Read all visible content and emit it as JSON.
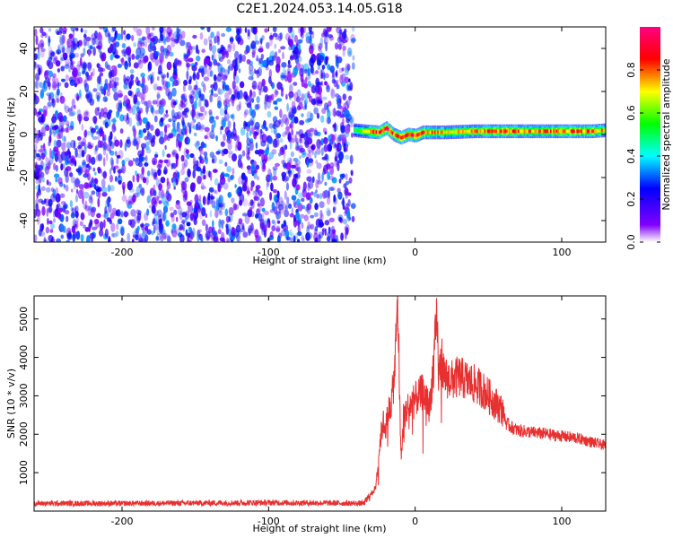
{
  "figure": {
    "title": "C2E1.2024.053.14.05.G18"
  },
  "chart_data": [
    {
      "type": "heatmap",
      "xlabel": "Height of straight line (km)",
      "ylabel": "Frequency (Hz)",
      "colorbar_label": "Normalized spectral amplitude",
      "xlim": [
        -260,
        130
      ],
      "ylim": [
        -50,
        50
      ],
      "xticks": [
        -200,
        -100,
        0,
        100
      ],
      "yticks": [
        -40,
        -20,
        0,
        20,
        40
      ],
      "colorbar_ticks": [
        0.0,
        0.2,
        0.4,
        0.6,
        0.8
      ],
      "colorbar_range": [
        0,
        1
      ],
      "colormap": [
        "#ffffff",
        "#8000ff",
        "#0000ff",
        "#00ffff",
        "#00ff00",
        "#ffff00",
        "#ff0000",
        "#ff0080"
      ],
      "noise_region": {
        "x": [
          -260,
          -42
        ],
        "y": [
          -50,
          50
        ],
        "amplitude": [
          0.05,
          0.35
        ]
      },
      "signal_trace": {
        "x": [
          -42,
          -35,
          -25,
          -20,
          -15,
          -10,
          -5,
          0,
          5,
          20,
          40,
          60,
          80,
          100,
          120,
          130
        ],
        "frequency": [
          2,
          1.5,
          1,
          3,
          0,
          -1.5,
          0,
          -0.5,
          1,
          1,
          1.5,
          1.5,
          1.5,
          1.5,
          1.5,
          2
        ],
        "amplitude": [
          0.5,
          0.7,
          0.85,
          0.9,
          0.8,
          0.85,
          0.9,
          0.85,
          0.8,
          0.7,
          0.75,
          0.8,
          0.75,
          0.8,
          0.8,
          0.7
        ]
      },
      "grid": false
    },
    {
      "type": "line",
      "xlabel": "Height of straight line (km)",
      "ylabel": "SNR (10 * v/v)",
      "xlim": [
        -260,
        130
      ],
      "ylim": [
        0,
        5600
      ],
      "xticks": [
        -200,
        -100,
        0,
        100
      ],
      "yticks": [
        1000,
        2000,
        3000,
        4000,
        5000
      ],
      "color": "#e83030",
      "series": [
        {
          "x": [
            -260,
            -200,
            -150,
            -100,
            -60,
            -35,
            -27,
            -24,
            -22,
            -20,
            -18,
            -16,
            -14,
            -12,
            -11,
            -10,
            -9,
            -8,
            -5,
            0,
            5,
            10,
            13,
            15,
            16,
            18,
            20,
            25,
            30,
            35,
            40,
            45,
            50,
            55,
            60,
            62,
            65,
            70,
            80,
            90,
            100,
            110,
            120,
            130
          ],
          "y": [
            200,
            200,
            210,
            220,
            210,
            200,
            600,
            1800,
            2300,
            2200,
            2600,
            2900,
            3600,
            5500,
            4000,
            1700,
            1500,
            2500,
            2700,
            2900,
            3100,
            2700,
            4100,
            5000,
            3500,
            4000,
            3500,
            3400,
            3500,
            3400,
            3300,
            3200,
            3000,
            2800,
            2600,
            2300,
            2200,
            2100,
            2050,
            2000,
            1950,
            1900,
            1800,
            1700
          ]
        }
      ],
      "grid": false
    }
  ]
}
